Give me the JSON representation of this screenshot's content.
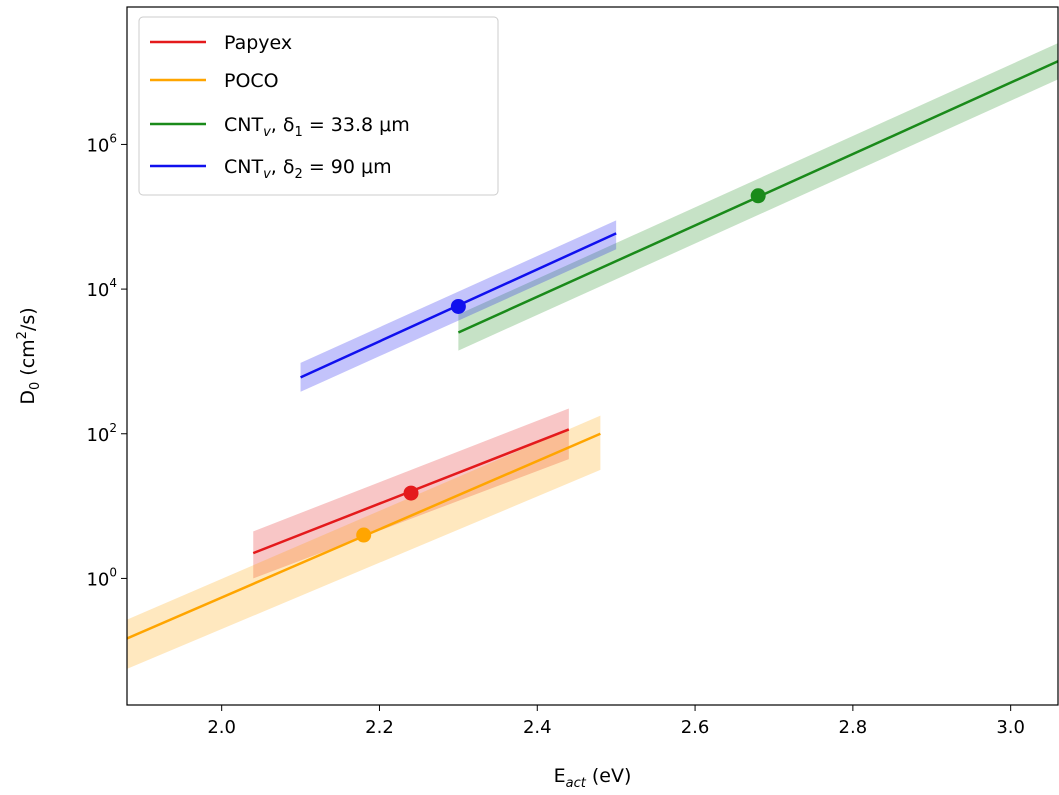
{
  "chart_data": {
    "type": "line",
    "xlabel": {
      "main": "E",
      "sub": "act",
      "rest": " (eV)"
    },
    "ylabel": {
      "main": "D",
      "sub": "0",
      "rest1": " (cm",
      "sup": "2",
      "rest2": "/s)"
    },
    "xlim": [
      1.88,
      3.06
    ],
    "ylim_log10": [
      -1.75,
      7.9
    ],
    "y_scale": "log",
    "grid": false,
    "legend_position": "top-left",
    "x_ticks": [
      {
        "value": 2.0,
        "label": "2.0"
      },
      {
        "value": 2.2,
        "label": "2.2"
      },
      {
        "value": 2.4,
        "label": "2.4"
      },
      {
        "value": 2.6,
        "label": "2.6"
      },
      {
        "value": 2.8,
        "label": "2.8"
      },
      {
        "value": 3.0,
        "label": "3.0"
      }
    ],
    "y_ticks": [
      {
        "log10": 0,
        "base": "10",
        "exp": "0"
      },
      {
        "log10": 2,
        "base": "10",
        "exp": "2"
      },
      {
        "log10": 4,
        "base": "10",
        "exp": "4"
      },
      {
        "log10": 6,
        "base": "10",
        "exp": "6"
      }
    ],
    "series": [
      {
        "key": "papyex",
        "legend": {
          "text": "Papyex"
        },
        "color": "#e41a1c",
        "line_x": [
          2.04,
          2.44
        ],
        "line_log10": [
          0.35,
          2.06
        ],
        "band_upper_log10": [
          0.65,
          2.35
        ],
        "band_lower_log10": [
          0.0,
          1.65
        ],
        "point": {
          "x": 2.24,
          "log10": 1.18
        }
      },
      {
        "key": "poco",
        "legend": {
          "text": "POCO"
        },
        "color": "#ffa500",
        "line_x": [
          1.88,
          2.48
        ],
        "line_log10": [
          -0.83,
          2.0
        ],
        "band_upper_log10": [
          -0.57,
          2.25
        ],
        "band_lower_log10": [
          -1.25,
          1.5
        ],
        "point": {
          "x": 2.18,
          "log10": 0.6
        }
      },
      {
        "key": "cnt1",
        "legend": {
          "base": "CNT",
          "sub1": "v",
          "mid": ", δ",
          "sub2": "1",
          "rest": " = 33.8 μm"
        },
        "color": "#1a8a1a",
        "line_x": [
          2.3,
          3.06
        ],
        "line_log10": [
          3.4,
          7.15
        ],
        "band_upper_log10": [
          3.65,
          7.4
        ],
        "band_lower_log10": [
          3.15,
          6.9
        ],
        "point": {
          "x": 2.68,
          "log10": 5.29
        }
      },
      {
        "key": "cnt2",
        "legend": {
          "base": "CNT",
          "sub1": "v",
          "mid": ", δ",
          "sub2": "2",
          "rest": " = 90 μm"
        },
        "color": "#1010ee",
        "line_x": [
          2.1,
          2.5
        ],
        "line_log10": [
          2.78,
          4.77
        ],
        "band_upper_log10": [
          2.98,
          4.95
        ],
        "band_lower_log10": [
          2.58,
          4.55
        ],
        "point": {
          "x": 2.3,
          "log10": 3.76
        }
      }
    ]
  }
}
